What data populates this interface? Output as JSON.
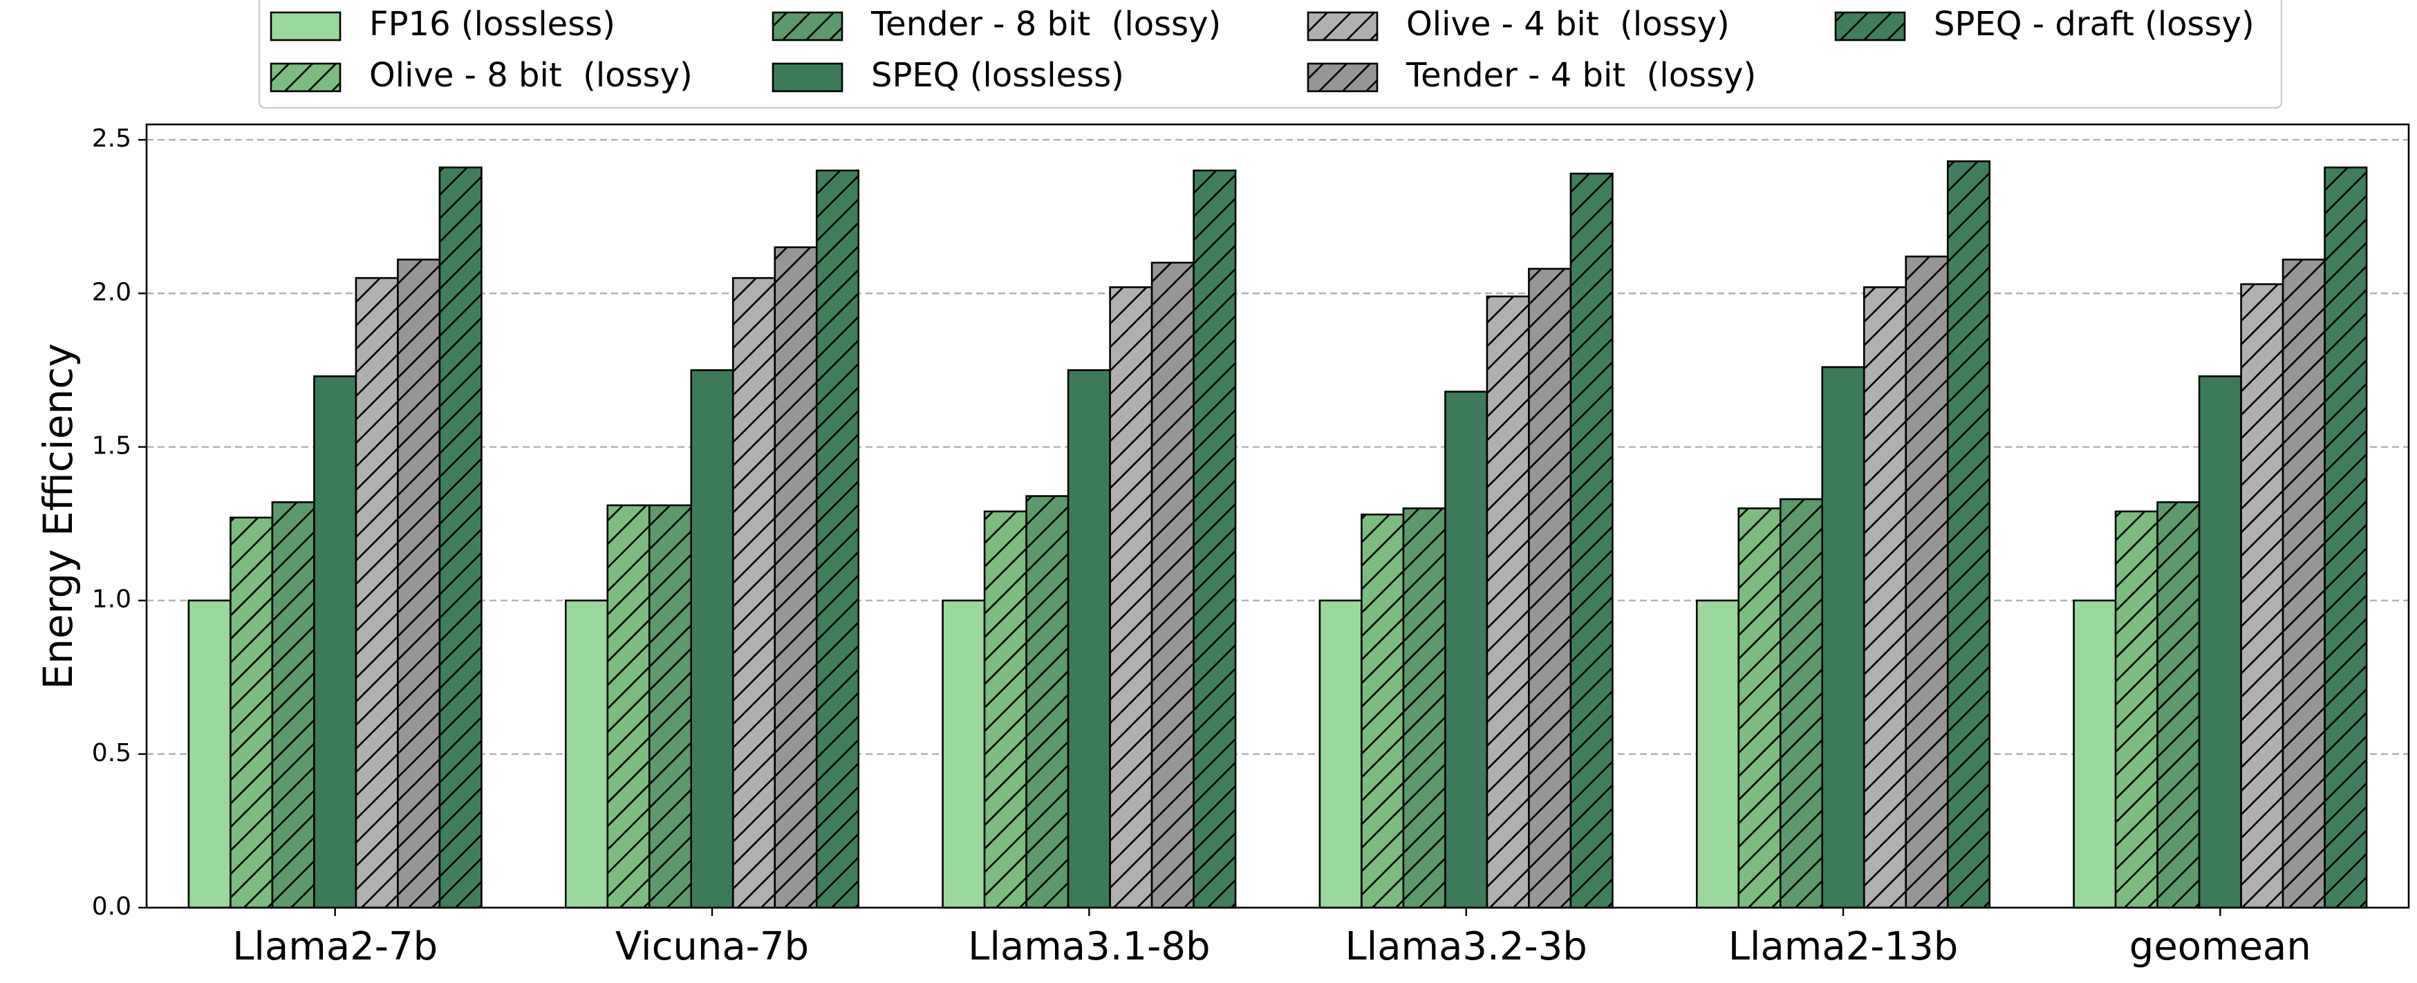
{
  "chart_data": {
    "type": "bar",
    "title": "",
    "xlabel": "",
    "ylabel": "Energy Efficiency",
    "ylim": [
      0,
      2.55
    ],
    "yticks": [
      "0.0",
      "0.5",
      "1.0",
      "1.5",
      "2.0",
      "2.5"
    ],
    "grid": "y-dashed",
    "legend_position": "top",
    "categories": [
      "Llama2-7b",
      "Vicuna-7b",
      "Llama3.1-8b",
      "Llama3.2-3b",
      "Llama2-13b",
      "geomean"
    ],
    "series": [
      {
        "name": "FP16 (lossless)",
        "color": "#9ad99b",
        "hatch": false,
        "values": [
          1.0,
          1.0,
          1.0,
          1.0,
          1.0,
          1.0
        ]
      },
      {
        "name": "Olive - 8 bit  (lossy)",
        "color": "#7bbd7f",
        "hatch": true,
        "values": [
          1.27,
          1.31,
          1.29,
          1.28,
          1.3,
          1.29
        ]
      },
      {
        "name": "Tender - 8 bit  (lossy)",
        "color": "#5b9a6a",
        "hatch": true,
        "values": [
          1.32,
          1.31,
          1.34,
          1.3,
          1.33,
          1.32
        ]
      },
      {
        "name": "SPEQ (lossless)",
        "color": "#3b7b59",
        "hatch": false,
        "values": [
          1.73,
          1.75,
          1.75,
          1.68,
          1.76,
          1.73
        ]
      },
      {
        "name": "Olive - 4 bit  (lossy)",
        "color": "#b0b0b0",
        "hatch": true,
        "values": [
          2.05,
          2.05,
          2.02,
          1.99,
          2.02,
          2.03
        ]
      },
      {
        "name": "Tender - 4 bit  (lossy)",
        "color": "#969696",
        "hatch": true,
        "values": [
          2.11,
          2.15,
          2.1,
          2.08,
          2.12,
          2.11
        ]
      },
      {
        "name": "SPEQ - draft (lossy)",
        "color": "#3f7f5c",
        "hatch": true,
        "values": [
          2.41,
          2.4,
          2.4,
          2.39,
          2.43,
          2.41
        ]
      }
    ],
    "legend_order": [
      0,
      2,
      4,
      6,
      1,
      3,
      5
    ]
  }
}
